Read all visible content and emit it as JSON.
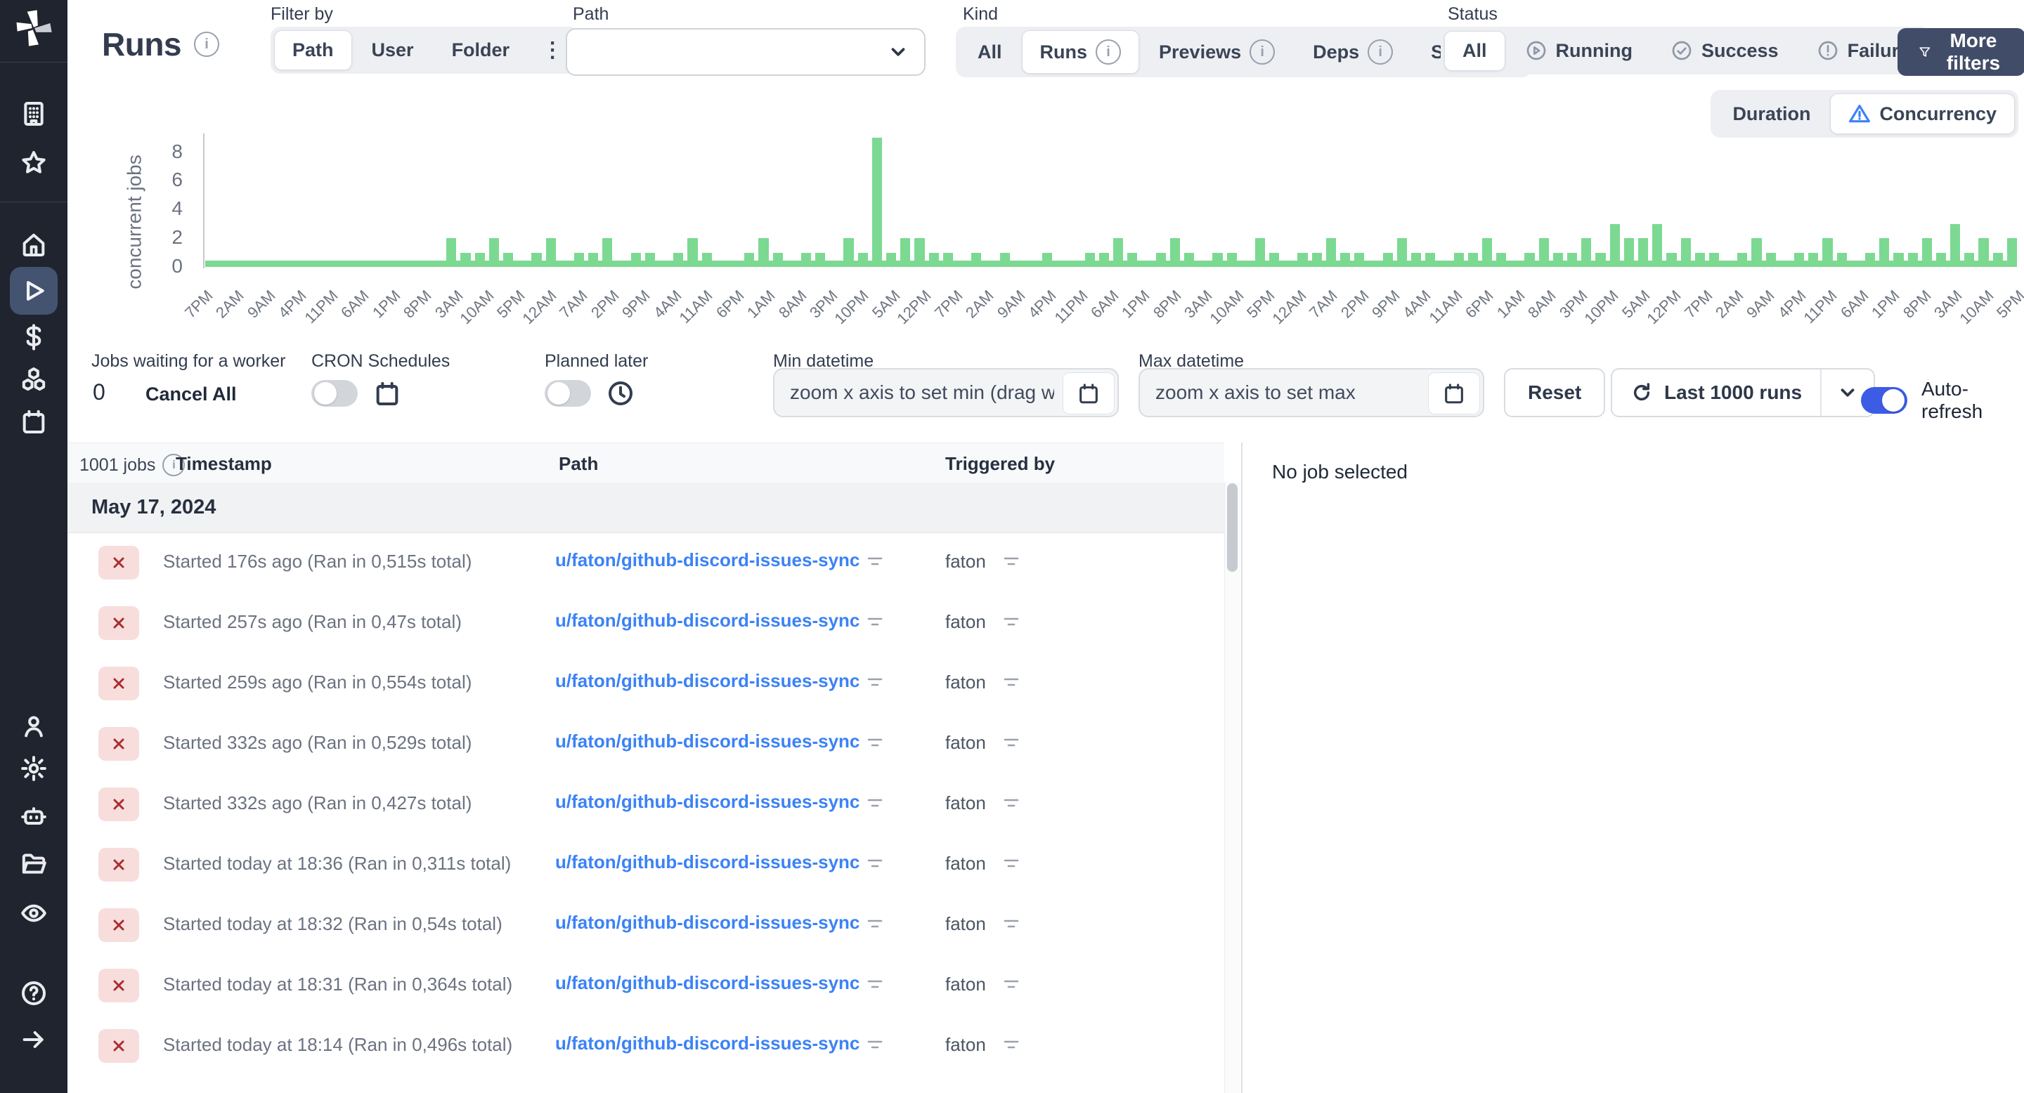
{
  "page": {
    "title": "Runs"
  },
  "colors": {
    "accent_blue": "#3b82f6",
    "toggle_blue": "#3c5ce5",
    "bar_green": "#7cd992",
    "failure_badge_bg": "#f8dddd",
    "failure_badge_x": "#a92f2f",
    "more_filters_bg": "#414d68",
    "sidebar_bg": "#20242e",
    "sidebar_active_bg": "#44536f"
  },
  "sidebar": {
    "logo": "windmill-logo",
    "top_icons": [
      "building-icon",
      "star-icon"
    ],
    "main_icons": [
      "home-icon",
      "play-icon",
      "dollar-icon",
      "cubes-icon",
      "calendar-icon"
    ],
    "active_icon": "play-icon",
    "lower_icons": [
      "user-icon",
      "gear-icon",
      "robot-icon",
      "folder-icon",
      "eye-icon"
    ],
    "bottom_icons": [
      "help-icon",
      "arrow-right-icon"
    ]
  },
  "filters": {
    "filter_by": {
      "label": "Filter by",
      "options": [
        {
          "label": "Path",
          "selected": true
        },
        {
          "label": "User",
          "selected": false
        },
        {
          "label": "Folder",
          "selected": false
        }
      ],
      "menu_icon": "kebab-menu-icon",
      "menu_glyph": "⋮"
    },
    "path": {
      "label": "Path",
      "value": ""
    },
    "kind": {
      "label": "Kind",
      "options": [
        {
          "label": "All",
          "selected": false,
          "info": false
        },
        {
          "label": "Runs",
          "selected": true,
          "info": true
        },
        {
          "label": "Previews",
          "selected": false,
          "info": true
        },
        {
          "label": "Deps",
          "selected": false,
          "info": true
        },
        {
          "label": "Sync",
          "selected": false,
          "info": true
        }
      ]
    },
    "status": {
      "label": "Status",
      "options": [
        {
          "label": "All",
          "selected": true,
          "icon": ""
        },
        {
          "label": "Running",
          "selected": false,
          "icon": "play-circle-icon"
        },
        {
          "label": "Success",
          "selected": false,
          "icon": "check-circle-icon"
        },
        {
          "label": "Failure",
          "selected": false,
          "icon": "alert-circle-icon"
        }
      ]
    },
    "more_filters_label": "More filters"
  },
  "chart": {
    "mode_toggle": [
      {
        "label": "Duration",
        "selected": false
      },
      {
        "label": "Concurrency",
        "selected": true,
        "icon": "warning-triangle-icon"
      }
    ]
  },
  "chart_data": {
    "type": "bar",
    "title": "",
    "xlabel": "",
    "ylabel": "concurrent jobs",
    "ylim": [
      0,
      9.2
    ],
    "yticks": [
      0,
      2,
      4,
      6,
      8
    ],
    "grid": false,
    "legend": false,
    "bar_color": "#7cd992",
    "baseline_strip": true,
    "x_tick_labels": [
      "7PM",
      "2AM",
      "9AM",
      "4PM",
      "11PM",
      "6AM",
      "1PM",
      "8PM",
      "3AM",
      "10AM",
      "5PM",
      "12AM",
      "7AM",
      "2PM",
      "9PM",
      "4AM",
      "11AM",
      "6PM",
      "1AM",
      "8AM",
      "3PM",
      "10PM",
      "5AM",
      "12PM",
      "7PM",
      "2AM",
      "9AM",
      "4PM",
      "11PM",
      "6AM",
      "1PM",
      "8PM",
      "3AM",
      "10AM",
      "5PM",
      "12AM",
      "7AM",
      "2PM",
      "9PM",
      "4AM",
      "11AM",
      "6PM",
      "1AM",
      "8AM",
      "3PM",
      "10PM",
      "5AM",
      "12PM",
      "7PM",
      "2AM",
      "9AM",
      "4PM",
      "11PM",
      "6AM",
      "1PM",
      "8PM",
      "3AM",
      "10AM",
      "5PM"
    ],
    "values": [
      0,
      0,
      0,
      0,
      0,
      0,
      0,
      0,
      0,
      0,
      0,
      0,
      0,
      0,
      0,
      0,
      0,
      2,
      1,
      1,
      2,
      1,
      0,
      1,
      2,
      0,
      1,
      1,
      2,
      0,
      1,
      1,
      0,
      1,
      2,
      1,
      0,
      0,
      1,
      2,
      1,
      0,
      1,
      1,
      0,
      2,
      1,
      9,
      1,
      2,
      2,
      1,
      1,
      0,
      1,
      0,
      1,
      0,
      0,
      1,
      0,
      0,
      1,
      1,
      2,
      1,
      0,
      1,
      2,
      1,
      0,
      1,
      1,
      0,
      2,
      1,
      0,
      1,
      1,
      2,
      1,
      1,
      0,
      1,
      2,
      1,
      1,
      0,
      1,
      1,
      2,
      1,
      0,
      1,
      2,
      1,
      1,
      2,
      1,
      3,
      2,
      2,
      3,
      1,
      2,
      1,
      1,
      0,
      1,
      2,
      1,
      0,
      1,
      1,
      2,
      1,
      0,
      1,
      2,
      1,
      1,
      2,
      1,
      3,
      1,
      2,
      1,
      2
    ]
  },
  "controls": {
    "jobs_waiting": {
      "label": "Jobs waiting for a worker",
      "count": "0",
      "cancel_all_label": "Cancel All"
    },
    "cron": {
      "label": "CRON Schedules",
      "enabled": false,
      "icon": "calendar-icon"
    },
    "planned": {
      "label": "Planned later",
      "enabled": false,
      "icon": "clock-icon"
    },
    "min_datetime": {
      "label": "Min datetime",
      "value": "",
      "placeholder": "zoom x axis to set min (drag wi"
    },
    "max_datetime": {
      "label": "Max datetime",
      "value": "",
      "placeholder": "zoom x axis to set max"
    },
    "reset_label": "Reset",
    "runs_limit": {
      "label": "Last 1000 runs",
      "icon": "refresh-icon"
    },
    "auto_refresh": {
      "label": "Auto-refresh",
      "enabled": true
    }
  },
  "jobs": {
    "count_label": "1001 jobs",
    "columns": {
      "timestamp": "Timestamp",
      "path": "Path",
      "triggered_by": "Triggered by"
    },
    "date_group": "May 17, 2024",
    "rows": [
      {
        "status": "failure",
        "timestamp": "Started 176s ago (Ran in 0,515s total)",
        "path": "u/faton/github-discord-issues-sync",
        "triggered_by": "faton"
      },
      {
        "status": "failure",
        "timestamp": "Started 257s ago (Ran in 0,47s total)",
        "path": "u/faton/github-discord-issues-sync",
        "triggered_by": "faton"
      },
      {
        "status": "failure",
        "timestamp": "Started 259s ago (Ran in 0,554s total)",
        "path": "u/faton/github-discord-issues-sync",
        "triggered_by": "faton"
      },
      {
        "status": "failure",
        "timestamp": "Started 332s ago (Ran in 0,529s total)",
        "path": "u/faton/github-discord-issues-sync",
        "triggered_by": "faton"
      },
      {
        "status": "failure",
        "timestamp": "Started 332s ago (Ran in 0,427s total)",
        "path": "u/faton/github-discord-issues-sync",
        "triggered_by": "faton"
      },
      {
        "status": "failure",
        "timestamp": "Started today at 18:36 (Ran in 0,311s total)",
        "path": "u/faton/github-discord-issues-sync",
        "triggered_by": "faton"
      },
      {
        "status": "failure",
        "timestamp": "Started today at 18:32 (Ran in 0,54s total)",
        "path": "u/faton/github-discord-issues-sync",
        "triggered_by": "faton"
      },
      {
        "status": "failure",
        "timestamp": "Started today at 18:31 (Ran in 0,364s total)",
        "path": "u/faton/github-discord-issues-sync",
        "triggered_by": "faton"
      },
      {
        "status": "failure",
        "timestamp": "Started today at 18:14 (Ran in 0,496s total)",
        "path": "u/faton/github-discord-issues-sync",
        "triggered_by": "faton"
      }
    ]
  },
  "detail_panel": {
    "empty_text": "No job selected"
  }
}
